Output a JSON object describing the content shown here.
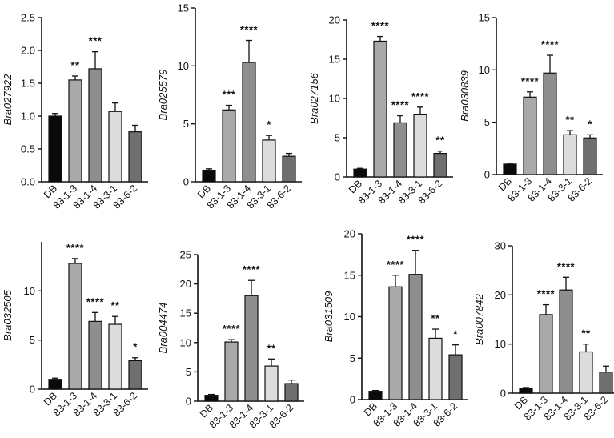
{
  "chart_data": [
    {
      "type": "bar",
      "ylabel": "Bra027922",
      "categories": [
        "DB",
        "83-1-3",
        "83-1-4",
        "83-3-1",
        "83-6-2"
      ],
      "values": [
        1.0,
        1.55,
        1.72,
        1.07,
        0.76
      ],
      "errors": [
        0.04,
        0.06,
        0.26,
        0.13,
        0.1
      ],
      "significance": [
        "",
        "**",
        "***",
        "",
        ""
      ],
      "ylim": [
        0,
        2.5
      ],
      "yticks": [
        "0.0",
        "0.5",
        "1.0",
        "1.5",
        "2.0",
        "2.5"
      ]
    },
    {
      "type": "bar",
      "ylabel": "Bra025579",
      "categories": [
        "DB",
        "83-1-3",
        "83-1-4",
        "83-3-1",
        "83-6-2"
      ],
      "values": [
        1.0,
        6.2,
        10.3,
        3.6,
        2.2
      ],
      "errors": [
        0.12,
        0.4,
        1.9,
        0.4,
        0.25
      ],
      "significance": [
        "",
        "***",
        "****",
        "*",
        ""
      ],
      "ylim": [
        0,
        15
      ],
      "yticks": [
        "0",
        "5",
        "10",
        "15"
      ]
    },
    {
      "type": "bar",
      "ylabel": "Bra027156",
      "categories": [
        "DB",
        "83-1-3",
        "83-1-4",
        "83-3-1",
        "83-6-2"
      ],
      "values": [
        1.0,
        17.3,
        6.9,
        8.0,
        3.0
      ],
      "errors": [
        0.1,
        0.6,
        0.9,
        0.9,
        0.3
      ],
      "significance": [
        "",
        "****",
        "****",
        "****",
        "**"
      ],
      "ylim": [
        0,
        20
      ],
      "yticks": [
        "0",
        "5",
        "10",
        "15",
        "20"
      ]
    },
    {
      "type": "bar",
      "ylabel": "Bra030839",
      "categories": [
        "DB",
        "83-1-3",
        "83-1-4",
        "83-3-1",
        "83-6-2"
      ],
      "values": [
        1.0,
        7.4,
        9.7,
        3.8,
        3.5
      ],
      "errors": [
        0.1,
        0.5,
        1.7,
        0.4,
        0.3
      ],
      "significance": [
        "",
        "****",
        "****",
        "**",
        "*"
      ],
      "ylim": [
        0,
        15
      ],
      "yticks": [
        "0",
        "5",
        "10",
        "15"
      ]
    },
    {
      "type": "bar",
      "ylabel": "Bra032505",
      "categories": [
        "DB",
        "83-1-3",
        "83-1-4",
        "83-3-1",
        "83-6-2"
      ],
      "values": [
        1.0,
        12.8,
        6.9,
        6.6,
        2.9
      ],
      "errors": [
        0.12,
        0.5,
        0.9,
        0.8,
        0.3
      ],
      "significance": [
        "",
        "****",
        "****",
        "**",
        "*"
      ],
      "ylim": [
        0,
        15
      ],
      "yticks": [
        "0",
        "5",
        "10"
      ]
    },
    {
      "type": "bar",
      "ylabel": "Bra004474",
      "categories": [
        "DB",
        "83-1-3",
        "83-1-4",
        "83-3-1",
        "83-6-2"
      ],
      "values": [
        1.0,
        10.1,
        18.0,
        6.0,
        3.0
      ],
      "errors": [
        0.15,
        0.4,
        2.6,
        1.2,
        0.6
      ],
      "significance": [
        "",
        "****",
        "****",
        "**",
        ""
      ],
      "ylim": [
        0,
        25
      ],
      "yticks": [
        "0",
        "5",
        "10",
        "15",
        "20",
        "25"
      ]
    },
    {
      "type": "bar",
      "ylabel": "Bra031509",
      "categories": [
        "DB",
        "83-1-3",
        "83-1-4",
        "83-3-1",
        "83-6-2"
      ],
      "values": [
        1.0,
        13.6,
        15.1,
        7.4,
        5.4
      ],
      "errors": [
        0.1,
        1.4,
        2.9,
        1.1,
        1.2
      ],
      "significance": [
        "",
        "****",
        "****",
        "**",
        "*"
      ],
      "ylim": [
        0,
        20
      ],
      "yticks": [
        "0",
        "5",
        "10",
        "15",
        "20"
      ]
    },
    {
      "type": "bar",
      "ylabel": "Bra007842",
      "categories": [
        "DB",
        "83-1-3",
        "83-1-4",
        "83-3-1",
        "83-6-2"
      ],
      "values": [
        1.0,
        16.0,
        21.0,
        8.4,
        4.3
      ],
      "errors": [
        0.15,
        2.0,
        2.6,
        1.6,
        1.2
      ],
      "significance": [
        "",
        "****",
        "****",
        "**",
        ""
      ],
      "ylim": [
        0,
        30
      ],
      "yticks": [
        "0",
        "10",
        "20",
        "30"
      ]
    }
  ],
  "style": {
    "bar_colors": [
      "#0a0a0a",
      "#a9a9a9",
      "#8e8e8e",
      "#dcdcdc",
      "#6f6f6f"
    ],
    "axis_color": "#111111"
  }
}
